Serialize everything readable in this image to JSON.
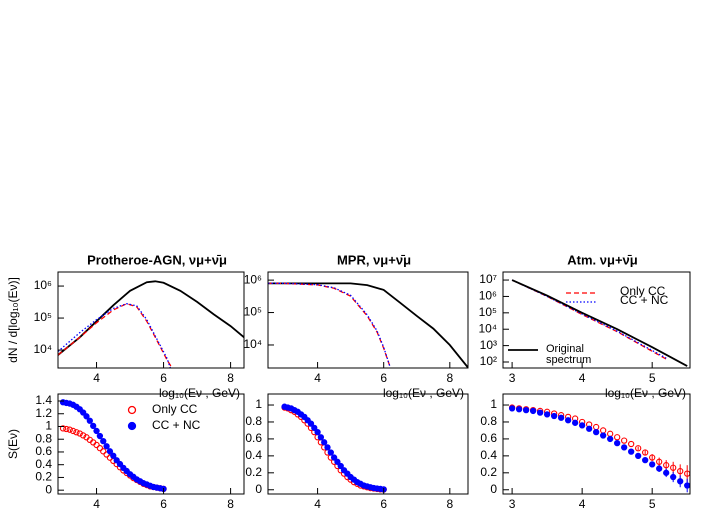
{
  "chart_data": [
    {
      "type": "line",
      "title": "Protheroe-AGN, νμ+ν̄μ",
      "ylabel": "dN / d[log₁₀(Eν)]",
      "xlabel": "log₁₀(Eν , GeV)",
      "xlim": [
        2.85,
        8.4
      ],
      "ylim": [
        2750,
        2750000
      ],
      "log_y": true,
      "xticks": [
        4,
        6,
        8
      ],
      "yticks": [
        {
          "value": 10000,
          "label": "10⁴"
        },
        {
          "value": 100000,
          "label": "10⁵"
        },
        {
          "value": 1000000,
          "label": "10⁶"
        }
      ],
      "series": [
        {
          "color": "#000000",
          "dash": "solid",
          "x": [
            2.85,
            3.5,
            4,
            4.5,
            5,
            5.5,
            5.75,
            6,
            6.5,
            7,
            7.5,
            8,
            8.4
          ],
          "values": [
            7000,
            25000,
            79000,
            250000,
            710000,
            1320000,
            1410000,
            1260000,
            710000,
            320000,
            130000,
            56000,
            25000
          ]
        },
        {
          "color": "#ff0000",
          "dash": "dashed",
          "x": [
            2.85,
            3.5,
            4,
            4.5,
            4.9,
            5.2,
            5.5,
            5.8,
            6.1,
            6.25
          ],
          "values": [
            7000,
            25000,
            71000,
            178000,
            282000,
            224000,
            79000,
            20000,
            5000,
            2800
          ]
        },
        {
          "color": "#0000ff",
          "dash": "dotted",
          "x": [
            2.85,
            3.5,
            4,
            4.5,
            4.9,
            5.2,
            5.5,
            5.8,
            6.1,
            6.2
          ],
          "values": [
            9000,
            35000,
            89000,
            200000,
            282000,
            240000,
            89000,
            22000,
            5600,
            2800
          ]
        }
      ]
    },
    {
      "type": "line",
      "title": "MPR, νμ+ν̄μ",
      "xlabel": "log₁₀(Eν , GeV)",
      "xlim": [
        2.5,
        8.55
      ],
      "ylim": [
        1950,
        1780000
      ],
      "log_y": true,
      "xticks": [
        4,
        6,
        8
      ],
      "yticks": [
        {
          "value": 10000,
          "label": "10⁴"
        },
        {
          "value": 100000,
          "label": "10⁵"
        },
        {
          "value": 1000000,
          "label": "10⁶"
        }
      ],
      "series": [
        {
          "color": "#000000",
          "dash": "solid",
          "x": [
            2.5,
            3,
            4,
            5,
            5.5,
            6,
            6.5,
            7,
            7.5,
            8,
            8.55
          ],
          "values": [
            790000,
            790000,
            790000,
            790000,
            700000,
            500000,
            200000,
            79000,
            32000,
            10000,
            2000
          ]
        },
        {
          "color": "#ff0000",
          "dash": "dashed",
          "x": [
            2.5,
            3,
            4,
            4.5,
            5,
            5.5,
            5.8,
            6,
            6.2
          ],
          "values": [
            790000,
            790000,
            710000,
            560000,
            320000,
            79000,
            25000,
            7900,
            2000
          ]
        },
        {
          "color": "#0000ff",
          "dash": "dotted",
          "x": [
            2.5,
            3,
            4,
            4.5,
            5,
            5.5,
            5.8,
            6,
            6.2
          ],
          "values": [
            800000,
            800000,
            720000,
            580000,
            340000,
            85000,
            27000,
            8500,
            2000
          ]
        }
      ]
    },
    {
      "type": "line",
      "title": "Atm. νμ+ν̄μ",
      "xlabel": "log₁₀(Eν , GeV)",
      "xlim": [
        2.87,
        5.54
      ],
      "ylim": [
        43,
        31000000
      ],
      "log_y": true,
      "xticks": [
        3,
        4,
        5
      ],
      "yticks": [
        {
          "value": 100,
          "label": "10²"
        },
        {
          "value": 1000,
          "label": "10³"
        },
        {
          "value": 10000,
          "label": "10⁴"
        },
        {
          "value": 100000,
          "label": "10⁵"
        },
        {
          "value": 1000000,
          "label": "10⁶"
        },
        {
          "value": 10000000,
          "label": "10⁷"
        }
      ],
      "legend": "top-right",
      "series": [
        {
          "name": "Only CC",
          "color": "#ff0000",
          "dash": "dashed",
          "x": [
            3,
            3.5,
            4,
            4.5,
            5,
            5.2
          ],
          "values": [
            10000000,
            1000000,
            79000,
            7100,
            450,
            150
          ]
        },
        {
          "name": "CC + NC",
          "color": "#0000ff",
          "dash": "dotted",
          "x": [
            3,
            3.5,
            4,
            4.5,
            5,
            5.2
          ],
          "values": [
            10000000,
            1000000,
            85000,
            7600,
            500,
            170
          ]
        },
        {
          "name": "Original spectrum",
          "color": "#000000",
          "dash": "solid",
          "x": [
            3,
            3.5,
            4,
            4.5,
            5,
            5.5
          ],
          "values": [
            10000000,
            1120000,
            100000,
            10000,
            800,
            56
          ]
        }
      ]
    },
    {
      "type": "scatter",
      "ylabel": "S(Eν)",
      "xlabel": "log₁₀(Eν , GeV)",
      "xlim": [
        2.85,
        8.4
      ],
      "ylim": [
        -0.06,
        1.51
      ],
      "xticks": [
        4,
        6,
        8
      ],
      "yticks": [
        0,
        0.2,
        0.4,
        0.6,
        0.8,
        1,
        1.2,
        1.4
      ],
      "legend": "top-right",
      "x": [
        3.0,
        3.1,
        3.2,
        3.3,
        3.4,
        3.5,
        3.6,
        3.7,
        3.8,
        3.9,
        4.0,
        4.1,
        4.2,
        4.3,
        4.4,
        4.5,
        4.6,
        4.7,
        4.8,
        4.9,
        5.0,
        5.1,
        5.2,
        5.3,
        5.4,
        5.5,
        5.6,
        5.7,
        5.8,
        5.9,
        6.0
      ],
      "series": [
        {
          "name": "Only CC",
          "color": "#ff0000",
          "marker": "open",
          "values": [
            0.97,
            0.96,
            0.95,
            0.93,
            0.91,
            0.89,
            0.86,
            0.83,
            0.79,
            0.75,
            0.71,
            0.66,
            0.61,
            0.56,
            0.51,
            0.46,
            0.41,
            0.36,
            0.31,
            0.27,
            0.23,
            0.19,
            0.16,
            0.13,
            0.1,
            0.08,
            0.06,
            0.05,
            0.04,
            0.03,
            0.02
          ]
        },
        {
          "name": "CC + NC",
          "color": "#0000ff",
          "marker": "filled",
          "values": [
            1.38,
            1.37,
            1.36,
            1.34,
            1.31,
            1.27,
            1.22,
            1.16,
            1.09,
            1.01,
            0.93,
            0.85,
            0.77,
            0.69,
            0.61,
            0.54,
            0.47,
            0.41,
            0.35,
            0.3,
            0.25,
            0.21,
            0.17,
            0.14,
            0.11,
            0.09,
            0.07,
            0.05,
            0.04,
            0.03,
            0.02
          ]
        }
      ]
    },
    {
      "type": "scatter",
      "xlabel": "log₁₀(Eν , GeV)",
      "xlim": [
        2.5,
        8.55
      ],
      "ylim": [
        -0.05,
        1.13
      ],
      "xticks": [
        4,
        6,
        8
      ],
      "yticks": [
        0,
        0.2,
        0.4,
        0.6,
        0.8,
        1
      ],
      "x": [
        3.0,
        3.1,
        3.2,
        3.3,
        3.4,
        3.5,
        3.6,
        3.7,
        3.8,
        3.9,
        4.0,
        4.1,
        4.2,
        4.3,
        4.4,
        4.5,
        4.6,
        4.7,
        4.8,
        4.9,
        5.0,
        5.1,
        5.2,
        5.3,
        5.4,
        5.5,
        5.6,
        5.7,
        5.8,
        5.9,
        6.0
      ],
      "series": [
        {
          "color": "#ff0000",
          "marker": "open",
          "values": [
            0.97,
            0.96,
            0.94,
            0.92,
            0.89,
            0.86,
            0.82,
            0.78,
            0.73,
            0.68,
            0.62,
            0.56,
            0.5,
            0.44,
            0.38,
            0.33,
            0.28,
            0.23,
            0.19,
            0.15,
            0.12,
            0.09,
            0.07,
            0.05,
            0.04,
            0.03,
            0.02,
            0.015,
            0.01,
            0.005,
            0.003
          ]
        },
        {
          "color": "#0000ff",
          "marker": "filled",
          "values": [
            0.98,
            0.97,
            0.96,
            0.94,
            0.92,
            0.89,
            0.86,
            0.82,
            0.78,
            0.73,
            0.68,
            0.62,
            0.56,
            0.5,
            0.44,
            0.38,
            0.33,
            0.28,
            0.23,
            0.19,
            0.15,
            0.12,
            0.09,
            0.07,
            0.05,
            0.04,
            0.03,
            0.02,
            0.015,
            0.01,
            0.005
          ]
        }
      ]
    },
    {
      "type": "scatter",
      "xlabel": "log₁₀(Eν , GeV)",
      "xlim": [
        2.87,
        5.54
      ],
      "ylim": [
        -0.05,
        1.13
      ],
      "xticks": [
        3,
        4,
        5
      ],
      "yticks": [
        0,
        0.2,
        0.4,
        0.6,
        0.8,
        1
      ],
      "x": [
        3.0,
        3.1,
        3.2,
        3.3,
        3.4,
        3.5,
        3.6,
        3.7,
        3.8,
        3.9,
        4.0,
        4.1,
        4.2,
        4.3,
        4.4,
        4.5,
        4.6,
        4.7,
        4.8,
        4.9,
        5.0,
        5.1,
        5.2,
        5.3,
        5.4,
        5.5
      ],
      "series": [
        {
          "color": "#ff0000",
          "marker": "open",
          "values": [
            0.97,
            0.96,
            0.95,
            0.94,
            0.93,
            0.92,
            0.9,
            0.88,
            0.86,
            0.84,
            0.8,
            0.77,
            0.74,
            0.7,
            0.66,
            0.62,
            0.58,
            0.54,
            0.49,
            0.44,
            0.38,
            0.33,
            0.29,
            0.26,
            0.22,
            0.19
          ],
          "errors": [
            0,
            0,
            0,
            0,
            0,
            0,
            0,
            0,
            0,
            0,
            0,
            0,
            0,
            0,
            0,
            0,
            0,
            0,
            0.02,
            0.03,
            0.04,
            0.05,
            0.06,
            0.07,
            0.08,
            0.1
          ]
        },
        {
          "color": "#0000ff",
          "marker": "filled",
          "values": [
            0.96,
            0.95,
            0.94,
            0.93,
            0.91,
            0.89,
            0.87,
            0.85,
            0.82,
            0.79,
            0.76,
            0.72,
            0.68,
            0.64,
            0.6,
            0.55,
            0.5,
            0.45,
            0.4,
            0.35,
            0.3,
            0.25,
            0.2,
            0.15,
            0.1,
            0.05
          ],
          "errors": [
            0,
            0,
            0,
            0,
            0,
            0,
            0,
            0,
            0,
            0,
            0,
            0,
            0,
            0,
            0,
            0,
            0,
            0,
            0.02,
            0.02,
            0.03,
            0.04,
            0.05,
            0.06,
            0.07,
            0.08
          ]
        }
      ]
    }
  ]
}
